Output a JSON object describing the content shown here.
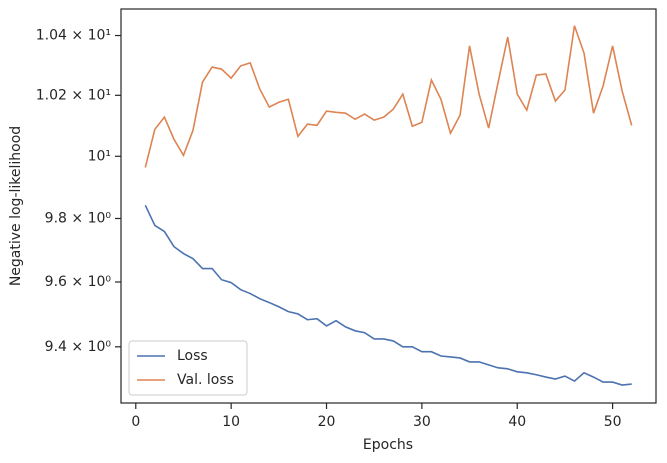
{
  "chart_data": {
    "type": "line",
    "xlabel": "Epochs",
    "ylabel": "Negative log-likelihood",
    "x": [
      1,
      2,
      3,
      4,
      5,
      6,
      7,
      8,
      9,
      10,
      11,
      12,
      13,
      14,
      15,
      16,
      17,
      18,
      19,
      20,
      21,
      22,
      23,
      24,
      25,
      26,
      27,
      28,
      29,
      30,
      31,
      32,
      33,
      34,
      35,
      36,
      37,
      38,
      39,
      40,
      41,
      42,
      43,
      44,
      45,
      46,
      47,
      48,
      49,
      50,
      51,
      52
    ],
    "series": [
      {
        "name": "Loss",
        "color": "#4c72b0",
        "values": [
          9.842,
          9.778,
          9.759,
          9.711,
          9.689,
          9.673,
          9.642,
          9.642,
          9.607,
          9.598,
          9.576,
          9.564,
          9.548,
          9.536,
          9.523,
          9.508,
          9.501,
          9.483,
          9.486,
          9.464,
          9.48,
          9.461,
          9.449,
          9.443,
          9.424,
          9.424,
          9.418,
          9.4,
          9.4,
          9.385,
          9.385,
          9.372,
          9.369,
          9.366,
          9.354,
          9.354,
          9.345,
          9.336,
          9.333,
          9.324,
          9.321,
          9.315,
          9.308,
          9.302,
          9.311,
          9.296,
          9.321,
          9.308,
          9.293,
          9.293,
          9.284,
          9.287
        ]
      },
      {
        "name": "Val. loss",
        "color": "#dd8452",
        "values": [
          9.964,
          10.088,
          10.128,
          10.056,
          10.003,
          10.085,
          10.244,
          10.294,
          10.287,
          10.257,
          10.298,
          10.308,
          10.221,
          10.161,
          10.177,
          10.187,
          10.065,
          10.105,
          10.101,
          10.148,
          10.144,
          10.141,
          10.121,
          10.138,
          10.118,
          10.128,
          10.154,
          10.204,
          10.098,
          10.111,
          10.251,
          10.187,
          10.075,
          10.134,
          10.365,
          10.204,
          10.092,
          10.244,
          10.395,
          10.204,
          10.151,
          10.267,
          10.271,
          10.181,
          10.217,
          10.433,
          10.341,
          10.141,
          10.231,
          10.365,
          10.214,
          10.101
        ]
      }
    ],
    "xlim": [
      -1.55,
      54.55
    ],
    "xticks": [
      0,
      10,
      20,
      30,
      40,
      50
    ],
    "ylim": [
      9.23,
      10.49
    ],
    "ylog": true,
    "yticks": [
      {
        "value": 9.4,
        "label": "9.4 × 10⁰"
      },
      {
        "value": 9.6,
        "label": "9.6 × 10⁰"
      },
      {
        "value": 9.8,
        "label": "9.8 × 10⁰"
      },
      {
        "value": 10,
        "label": "10¹"
      },
      {
        "value": 10.2,
        "label": "1.02 × 10¹"
      },
      {
        "value": 10.4,
        "label": "1.04 × 10¹"
      }
    ],
    "legend": "lower left",
    "grid": false
  }
}
